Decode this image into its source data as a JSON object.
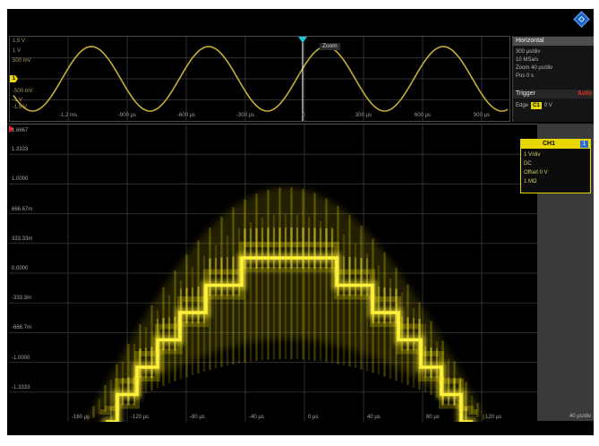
{
  "overview": {
    "scale_labels": [
      "1.5 V",
      "1 V",
      "500 mV",
      "-500 mV",
      "-1 V",
      "-1.5 V"
    ],
    "channel_marker": "1",
    "zoom_label": "Zoom",
    "time_labels": [
      "-1.2 ms",
      "-900 µs",
      "-600 µs",
      "-300 µs",
      "0",
      "300 µs",
      "600 µs",
      "900 µs"
    ]
  },
  "horizontal": {
    "title": "Horizontal",
    "lines": [
      "300 µs/div",
      "10 MSa/s",
      "Zoom 40 µs/div",
      "Pos 0 s"
    ]
  },
  "trigger": {
    "title": "Trigger",
    "mode": "Auto",
    "type": "Edge",
    "source": "C1",
    "level": "0 V"
  },
  "main": {
    "level_labels": [
      "1.6667",
      "1.3333",
      "1.0000",
      "666.67m",
      "333.33m",
      "0.0000",
      "-333.3m",
      "-666.7m",
      "-1.0000",
      "-1.3333"
    ],
    "time_labels": [
      "-160 µs",
      "-120 µs",
      "-80 µs",
      "-40 µs",
      "0 µs",
      "40 µs",
      "80 µs",
      "120 µs"
    ],
    "corner_label": "40 µs/div"
  },
  "channel": {
    "name": "CH1",
    "index": "1",
    "lines": [
      "1 V/div",
      "DC",
      "Offset 0 V",
      "1 MΩ"
    ]
  },
  "icons": {
    "logo": "diamond-logo-icon",
    "trigger_position": "trigger-position-marker-icon",
    "trigger_level": "trigger-level-marker-icon"
  },
  "colors": {
    "grid": "#2e2e2e",
    "overview_trace": "#c4ae36",
    "trace_core": "#fff03c",
    "trace_haze": "#d8c800",
    "trigger_marker": "#1cc4d4",
    "trigger_mode": "#e0302a",
    "channel": "#e8d800",
    "logo": "#1c63c4"
  }
}
